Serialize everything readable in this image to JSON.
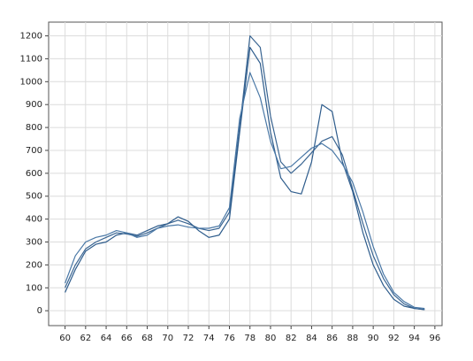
{
  "chart_data": {
    "type": "line",
    "x": [
      60,
      61,
      62,
      63,
      64,
      65,
      66,
      67,
      68,
      69,
      70,
      71,
      72,
      73,
      74,
      75,
      76,
      77,
      78,
      79,
      80,
      81,
      82,
      83,
      84,
      85,
      86,
      87,
      88,
      89,
      90,
      91,
      92,
      93,
      94,
      95
    ],
    "series": [
      {
        "color": "#3a6592",
        "values": [
          100,
          200,
          270,
          300,
          320,
          340,
          335,
          325,
          340,
          360,
          380,
          395,
          380,
          360,
          350,
          360,
          430,
          800,
          1200,
          1150,
          850,
          650,
          600,
          640,
          690,
          740,
          760,
          680,
          530,
          380,
          240,
          140,
          70,
          30,
          10,
          5
        ]
      },
      {
        "color": "#2e5c8c",
        "values": [
          80,
          180,
          260,
          290,
          300,
          330,
          340,
          330,
          350,
          370,
          380,
          410,
          390,
          350,
          320,
          330,
          400,
          780,
          1150,
          1080,
          780,
          580,
          520,
          510,
          650,
          900,
          870,
          650,
          520,
          340,
          200,
          110,
          50,
          20,
          10,
          5
        ]
      },
      {
        "color": "#4a78a6",
        "values": [
          120,
          240,
          300,
          320,
          330,
          350,
          340,
          320,
          330,
          360,
          370,
          375,
          365,
          360,
          360,
          370,
          450,
          840,
          1040,
          930,
          740,
          620,
          630,
          670,
          710,
          730,
          700,
          640,
          560,
          430,
          280,
          160,
          80,
          40,
          15,
          10
        ]
      }
    ],
    "xlim": [
      58.4,
      96.7
    ],
    "ylim": [
      -65,
      1260
    ],
    "xticks": [
      60,
      62,
      64,
      66,
      68,
      70,
      72,
      74,
      76,
      78,
      80,
      82,
      84,
      86,
      88,
      90,
      92,
      94,
      96
    ],
    "yticks": [
      0,
      100,
      200,
      300,
      400,
      500,
      600,
      700,
      800,
      900,
      1000,
      1100,
      1200
    ],
    "grid": true
  }
}
